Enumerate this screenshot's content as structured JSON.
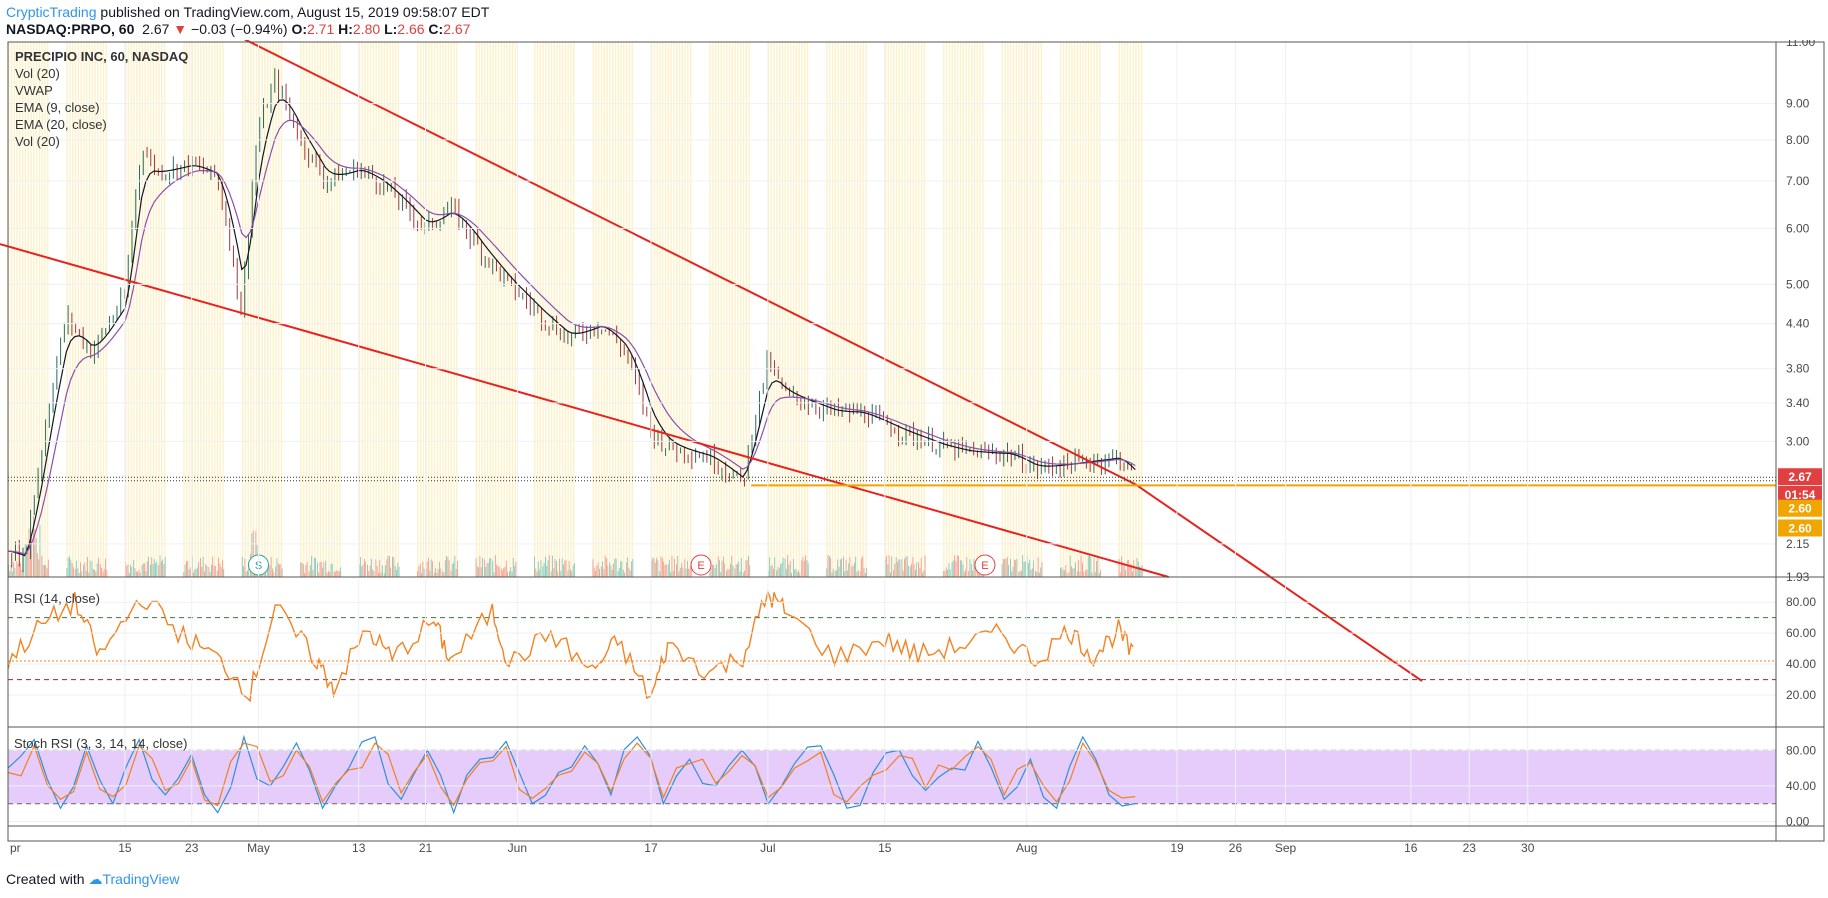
{
  "header": {
    "author": "CrypticTrading",
    "published": " published on TradingView.com, August 15, 2019 09:58:07 EDT",
    "symbol": "NASDAQ:PRPO, 60",
    "last": "2.67",
    "arrow": "▼",
    "change": "−0.03 (−0.94%)",
    "o_label": "O:",
    "o": "2.71",
    "h_label": "H:",
    "h": "2.80",
    "l_label": "L:",
    "l": "2.66",
    "c_label": "C:",
    "c": "2.67"
  },
  "footer": {
    "created": "Created with",
    "brand": "TradingView"
  },
  "colors": {
    "trendline": "#e8221c",
    "support": "#f0a500",
    "rsi": "#f58220",
    "stoch_k": "#2f8fd8",
    "stoch_d": "#f08020",
    "stoch_band": "#e6ccfb",
    "session": "#fdf1c8",
    "up": "#26a69a",
    "down": "#ef5350",
    "ema9": "#131722",
    "ema20": "#8a4fb0"
  },
  "chart_data": [
    {
      "type": "line",
      "title": "PRECIPIO INC, 60, NASDAQ",
      "legend": [
        "Vol (20)",
        "VWAP",
        "EMA (9, close)",
        "EMA (20, close)",
        "Vol (20)"
      ],
      "scale": "log",
      "ylim": [
        1.93,
        11.0
      ],
      "yticks": [
        "11.00",
        "9.00",
        "8.00",
        "7.00",
        "6.00",
        "5.00",
        "4.40",
        "3.80",
        "3.40",
        "3.00",
        "2.15",
        "1.93"
      ],
      "xticks": [
        "pr",
        "15",
        "23",
        "May",
        "13",
        "21",
        "Jun",
        "17",
        "Jul",
        "15",
        "Aug",
        "19",
        "26",
        "Sep",
        "16",
        "23",
        "30"
      ],
      "x": [
        "Apr 1",
        "Apr 3",
        "Apr 5",
        "Apr 8",
        "Apr 11",
        "Apr 15",
        "Apr 17",
        "Apr 19",
        "Apr 23",
        "Apr 26",
        "Apr 29",
        "May 1",
        "May 3",
        "May 6",
        "May 9",
        "May 13",
        "May 16",
        "May 21",
        "May 24",
        "May 28",
        "May 31",
        "Jun 4",
        "Jun 7",
        "Jun 11",
        "Jun 14",
        "Jun 17",
        "Jun 19",
        "Jun 24",
        "Jun 28",
        "Jul 1",
        "Jul 3",
        "Jul 9",
        "Jul 12",
        "Jul 17",
        "Jul 22",
        "Jul 25",
        "Jul 30",
        "Aug 2",
        "Aug 7",
        "Aug 12",
        "Aug 14"
      ],
      "close": [
        2.1,
        2.05,
        2.9,
        4.5,
        4.0,
        4.8,
        7.8,
        7.2,
        7.4,
        7.1,
        4.5,
        8.3,
        9.7,
        8.0,
        7.0,
        7.3,
        6.9,
        6.0,
        6.4,
        5.5,
        5.0,
        4.5,
        4.2,
        4.4,
        4.0,
        3.1,
        2.95,
        2.85,
        2.62,
        3.9,
        3.5,
        3.3,
        3.3,
        3.1,
        2.95,
        2.9,
        2.88,
        2.75,
        2.8,
        2.85,
        2.67
      ],
      "annotations": [
        "S",
        "E",
        "E"
      ],
      "price_tags": [
        "2.67",
        "01:54",
        "2.60",
        "2.60"
      ]
    },
    {
      "type": "line",
      "title": "RSI (14, close)",
      "ylim": [
        0,
        95
      ],
      "yticks": [
        "80.00",
        "60.00",
        "40.00",
        "20.00"
      ],
      "bands": [
        30,
        70
      ],
      "level": 42,
      "x": [
        "Apr 1",
        "Apr 5",
        "Apr 9",
        "Apr 12",
        "Apr 17",
        "Apr 22",
        "Apr 26",
        "Apr 30",
        "May 3",
        "May 8",
        "May 10",
        "May 14",
        "May 17",
        "May 22",
        "May 24",
        "May 29",
        "May 31",
        "Jun 5",
        "Jun 10",
        "Jun 13",
        "Jun 17",
        "Jun 19",
        "Jun 24",
        "Jun 28",
        "Jul 1",
        "Jul 3",
        "Jul 9",
        "Jul 15",
        "Jul 19",
        "Jul 24",
        "Jul 29",
        "Aug 2",
        "Aug 6",
        "Aug 9",
        "Aug 12",
        "Aug 14"
      ],
      "values": [
        42,
        65,
        80,
        45,
        84,
        58,
        44,
        22,
        76,
        42,
        25,
        62,
        44,
        68,
        42,
        74,
        40,
        60,
        35,
        55,
        18,
        52,
        35,
        45,
        85,
        75,
        44,
        56,
        46,
        52,
        60,
        42,
        62,
        45,
        62,
        42
      ]
    },
    {
      "type": "line",
      "title": "Stoch RSI (3, 3, 14, 14, close)",
      "ylim": [
        -5,
        105
      ],
      "yticks": [
        "80.00",
        "40.00",
        "0.00"
      ],
      "bands": [
        20,
        80
      ],
      "series": [
        {
          "name": "K",
          "values": [
            60,
            92,
            15,
            85,
            20,
            92,
            30,
            75,
            10,
            95,
            40,
            88,
            15,
            60,
            95,
            25,
            80,
            10,
            70,
            90,
            20,
            55,
            85,
            30,
            95,
            20,
            70,
            40,
            80,
            20,
            65,
            85,
            15,
            55,
            80,
            35,
            60,
            90,
            25,
            70,
            15,
            95,
            30,
            20
          ]
        },
        {
          "name": "D",
          "values": [
            55,
            85,
            25,
            78,
            28,
            85,
            35,
            70,
            18,
            88,
            45,
            80,
            22,
            58,
            88,
            32,
            75,
            18,
            66,
            84,
            26,
            52,
            78,
            34,
            88,
            27,
            65,
            43,
            74,
            27,
            60,
            78,
            22,
            52,
            74,
            38,
            58,
            84,
            30,
            66,
            22,
            88,
            35,
            28
          ]
        }
      ]
    }
  ]
}
